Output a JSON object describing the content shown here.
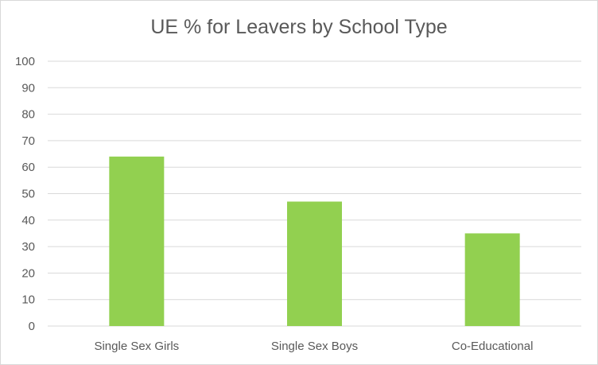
{
  "chart_data": {
    "type": "bar",
    "title": "UE % for Leavers by School Type",
    "categories": [
      "Single Sex Girls",
      "Single Sex Boys",
      "Co-Educational"
    ],
    "values": [
      64,
      47,
      35
    ],
    "ylim": [
      0,
      100
    ],
    "yticks": [
      0,
      10,
      20,
      30,
      40,
      50,
      60,
      70,
      80,
      90,
      100
    ],
    "xlabel": "",
    "ylabel": "",
    "grid": true,
    "legend": "none",
    "bar_color": "#92d050"
  }
}
